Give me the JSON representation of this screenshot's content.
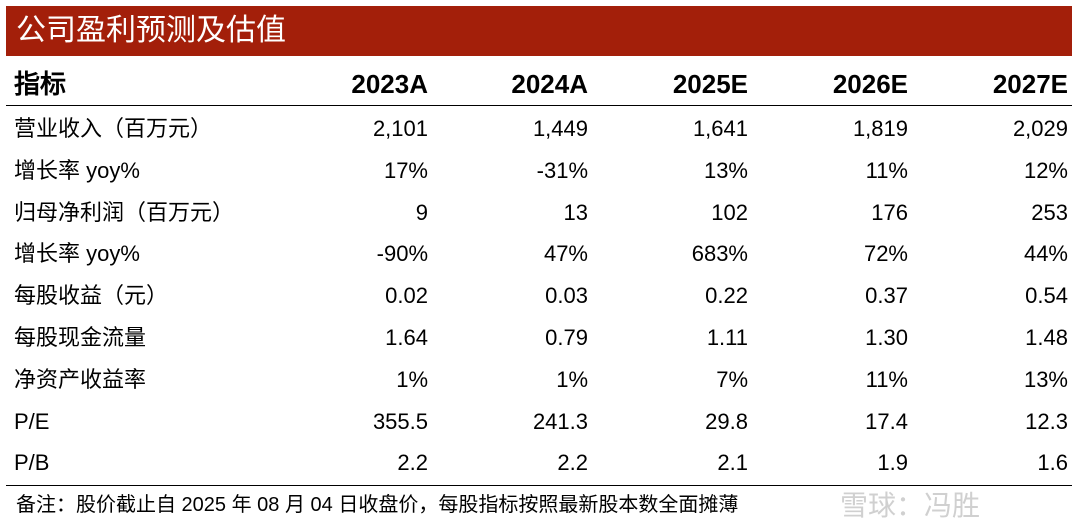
{
  "title": "公司盈利预测及估值",
  "header": {
    "label": "指标",
    "years": [
      "2023A",
      "2024A",
      "2025E",
      "2026E",
      "2027E"
    ]
  },
  "rows": [
    {
      "label": "营业收入（百万元）",
      "values": [
        "2,101",
        "1,449",
        "1,641",
        "1,819",
        "2,029"
      ]
    },
    {
      "label": "增长率 yoy%",
      "values": [
        "17%",
        "-31%",
        "13%",
        "11%",
        "12%"
      ]
    },
    {
      "label": "归母净利润（百万元）",
      "values": [
        "9",
        "13",
        "102",
        "176",
        "253"
      ]
    },
    {
      "label": "增长率 yoy%",
      "values": [
        "-90%",
        "47%",
        "683%",
        "72%",
        "44%"
      ]
    },
    {
      "label": "每股收益（元）",
      "values": [
        "0.02",
        "0.03",
        "0.22",
        "0.37",
        "0.54"
      ]
    },
    {
      "label": "每股现金流量",
      "values": [
        "1.64",
        "0.79",
        "1.11",
        "1.30",
        "1.48"
      ]
    },
    {
      "label": "净资产收益率",
      "values": [
        "1%",
        "1%",
        "7%",
        "11%",
        "13%"
      ]
    },
    {
      "label": "P/E",
      "values": [
        "355.5",
        "241.3",
        "29.8",
        "17.4",
        "12.3"
      ]
    },
    {
      "label": "P/B",
      "values": [
        "2.2",
        "2.2",
        "2.1",
        "1.9",
        "1.6"
      ]
    }
  ],
  "footnote": "备注：股价截止自 2025 年 08 月 04 日收盘价，每股指标按照最新股本数全面摊薄",
  "watermark": "雪球：冯胜",
  "colors": {
    "title_bg": "#a31f0a",
    "title_text": "#ffffff"
  }
}
